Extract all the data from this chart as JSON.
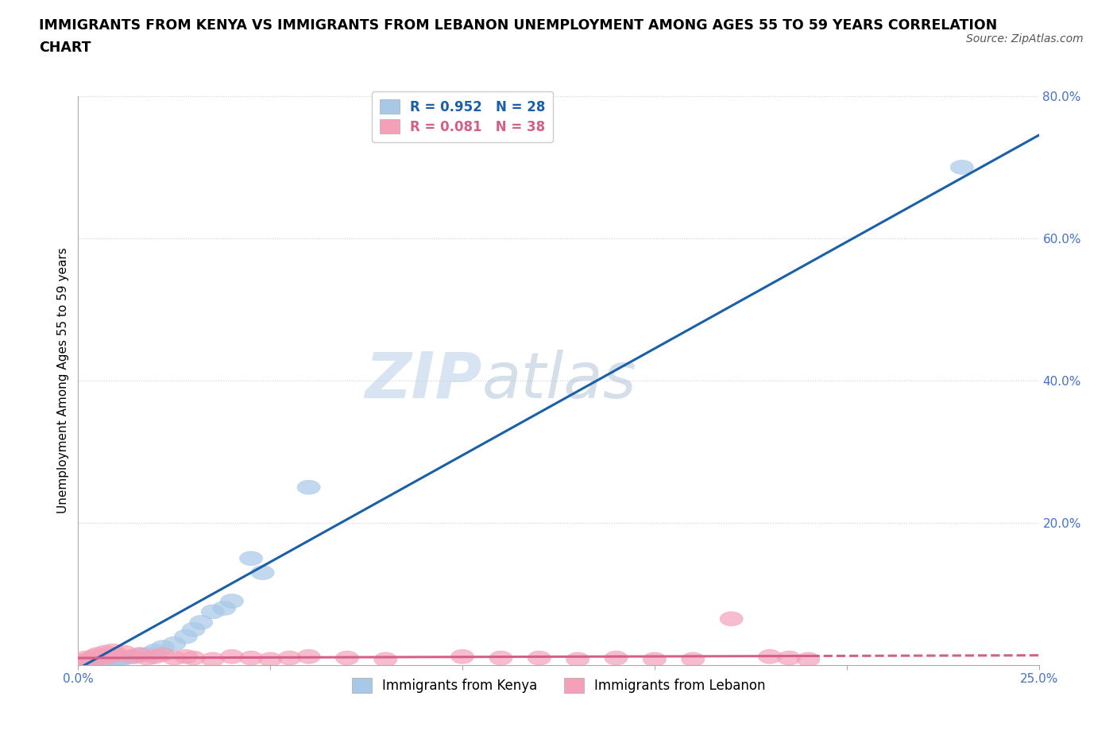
{
  "title_line1": "IMMIGRANTS FROM KENYA VS IMMIGRANTS FROM LEBANON UNEMPLOYMENT AMONG AGES 55 TO 59 YEARS CORRELATION",
  "title_line2": "CHART",
  "source": "Source: ZipAtlas.com",
  "watermark_zip": "ZIP",
  "watermark_atlas": "atlas",
  "ylabel": "Unemployment Among Ages 55 to 59 years",
  "xlim": [
    0.0,
    0.25
  ],
  "ylim": [
    0.0,
    0.8
  ],
  "xticks": [
    0.0,
    0.05,
    0.1,
    0.15,
    0.2,
    0.25
  ],
  "yticks": [
    0.0,
    0.2,
    0.4,
    0.6,
    0.8
  ],
  "kenya_color": "#a8c8e8",
  "lebanon_color": "#f4a0b8",
  "kenya_line_color": "#1a5fa8",
  "lebanon_line_color": "#d4608a",
  "kenya_R": 0.952,
  "kenya_N": 28,
  "lebanon_R": 0.081,
  "lebanon_N": 38,
  "kenya_x": [
    0.001,
    0.002,
    0.003,
    0.004,
    0.005,
    0.006,
    0.007,
    0.008,
    0.009,
    0.01,
    0.011,
    0.012,
    0.015,
    0.016,
    0.018,
    0.02,
    0.022,
    0.025,
    0.028,
    0.03,
    0.032,
    0.035,
    0.038,
    0.04,
    0.045,
    0.048,
    0.06,
    0.23
  ],
  "kenya_y": [
    0.002,
    0.003,
    0.004,
    0.003,
    0.005,
    0.005,
    0.006,
    0.007,
    0.006,
    0.008,
    0.009,
    0.01,
    0.012,
    0.014,
    0.015,
    0.02,
    0.025,
    0.03,
    0.04,
    0.05,
    0.06,
    0.075,
    0.08,
    0.09,
    0.15,
    0.13,
    0.25,
    0.7
  ],
  "lebanon_x": [
    0.001,
    0.002,
    0.003,
    0.004,
    0.005,
    0.006,
    0.007,
    0.008,
    0.009,
    0.01,
    0.012,
    0.014,
    0.016,
    0.018,
    0.02,
    0.022,
    0.025,
    0.028,
    0.03,
    0.035,
    0.04,
    0.045,
    0.05,
    0.055,
    0.06,
    0.07,
    0.08,
    0.1,
    0.11,
    0.12,
    0.13,
    0.14,
    0.15,
    0.16,
    0.17,
    0.18,
    0.185,
    0.19
  ],
  "lebanon_y": [
    0.005,
    0.01,
    0.008,
    0.012,
    0.015,
    0.01,
    0.018,
    0.012,
    0.02,
    0.015,
    0.018,
    0.012,
    0.015,
    0.01,
    0.012,
    0.015,
    0.01,
    0.012,
    0.01,
    0.008,
    0.012,
    0.01,
    0.008,
    0.01,
    0.012,
    0.01,
    0.008,
    0.012,
    0.01,
    0.01,
    0.008,
    0.01,
    0.008,
    0.008,
    0.065,
    0.012,
    0.01,
    0.008
  ],
  "background_color": "#ffffff",
  "grid_color": "#d0d0d0",
  "axis_color": "#aaaaaa",
  "title_fontsize": 12.5,
  "label_fontsize": 11,
  "tick_fontsize": 11,
  "legend_fontsize": 12,
  "source_fontsize": 10,
  "watermark_fontsize_zip": 58,
  "watermark_fontsize_atlas": 58,
  "watermark_color": "#ccdff0",
  "watermark_alpha": 0.6,
  "kenya_line_intercept": -0.005,
  "kenya_line_slope": 3.0,
  "lebanon_line_intercept": 0.01,
  "lebanon_line_slope": 0.015
}
